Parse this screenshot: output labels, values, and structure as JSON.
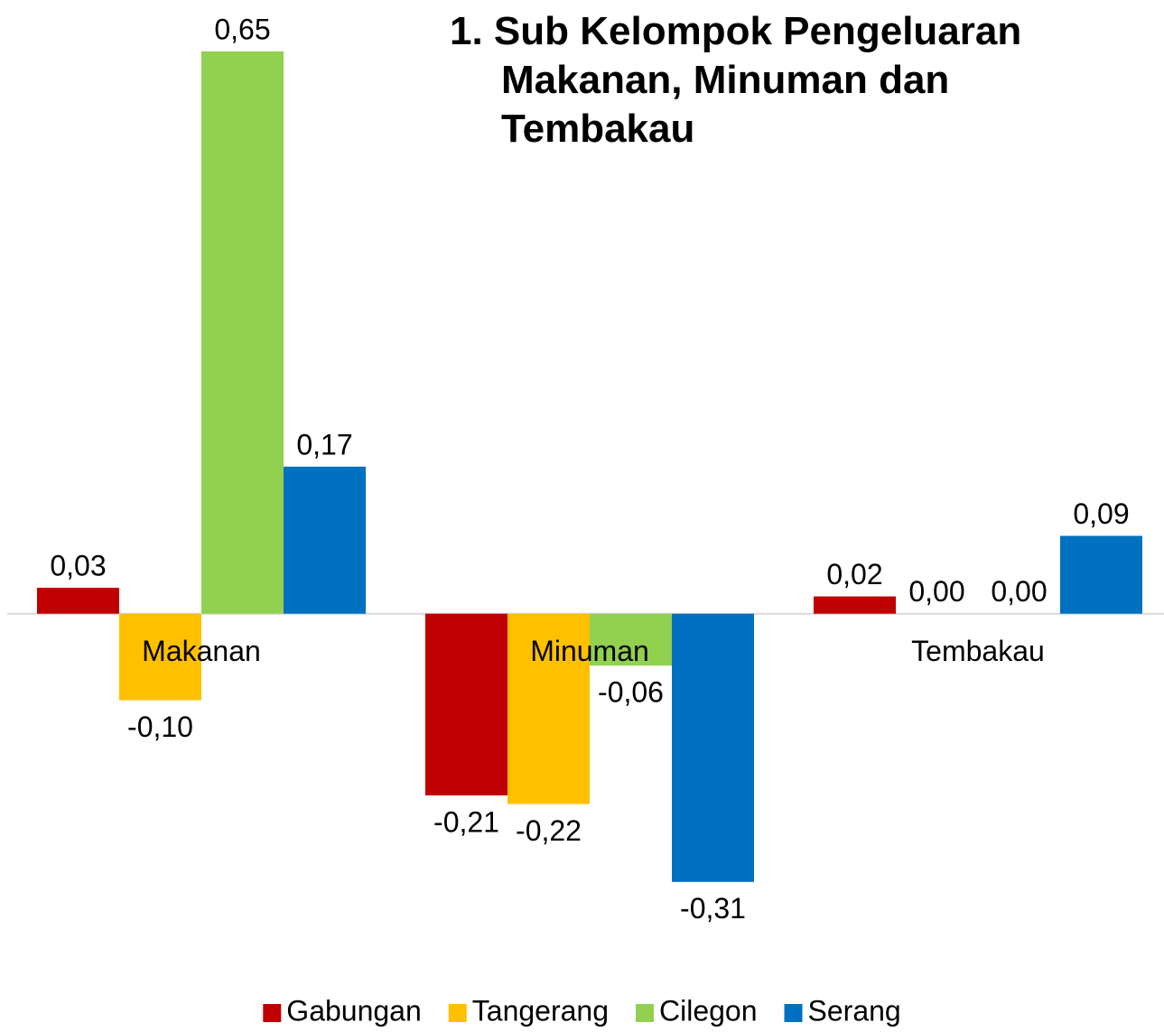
{
  "chart_data": {
    "type": "bar",
    "title": "1. Sub Kelompok Pengeluaran Makanan, Minuman dan Tembakau",
    "categories": [
      "Makanan",
      "Minuman",
      "Tembakau"
    ],
    "series": [
      {
        "name": "Gabungan",
        "color": "#c00000",
        "values": [
          0.03,
          -0.21,
          0.02
        ],
        "value_labels": [
          "0,03",
          "-0,21",
          "0,02"
        ]
      },
      {
        "name": "Tangerang",
        "color": "#ffc000",
        "values": [
          -0.1,
          -0.22,
          0.0
        ],
        "value_labels": [
          "-0,10",
          "-0,22",
          "0,00"
        ]
      },
      {
        "name": "Cilegon",
        "color": "#92d050",
        "values": [
          0.65,
          -0.06,
          0.0
        ],
        "value_labels": [
          "0,65",
          "-0,06",
          "0,00"
        ]
      },
      {
        "name": "Serang",
        "color": "#0070c0",
        "values": [
          0.17,
          -0.31,
          0.09
        ],
        "value_labels": [
          "0,17",
          "-0,31",
          "0,09"
        ]
      }
    ],
    "ylim": [
      -0.4,
      0.7
    ],
    "legend": "bottom"
  }
}
